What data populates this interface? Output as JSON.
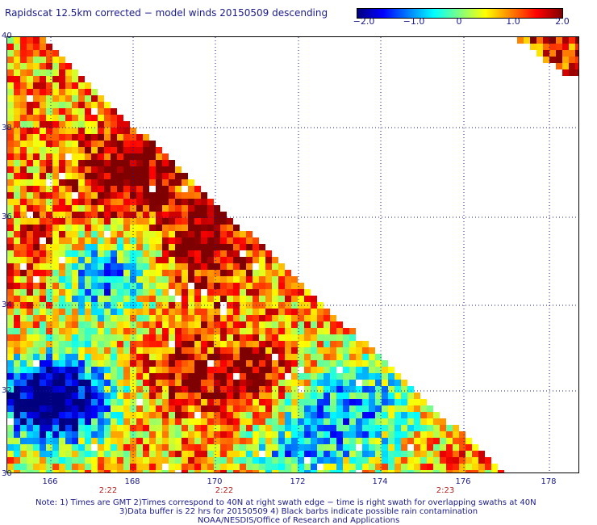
{
  "title": "Rapidscat 12.5km corrected − model winds 20150509 descending",
  "colorbar": {
    "ticks": [
      "−2.0",
      "−1.0",
      "0",
      "1.0",
      "2.0"
    ],
    "tick_values": [
      -2.0,
      -1.0,
      0.0,
      1.0,
      2.0
    ],
    "colors": [
      "#00007f",
      "#0000ff",
      "#0080ff",
      "#00ffff",
      "#80ff80",
      "#ffff00",
      "#ff8000",
      "#ff0000",
      "#7f0000"
    ]
  },
  "y_axis": {
    "labels": [
      "40",
      "38",
      "36",
      "34",
      "32",
      "30"
    ]
  },
  "x_axis": {
    "labels": [
      "166",
      "168",
      "170",
      "172",
      "174",
      "176",
      "178"
    ]
  },
  "time_labels": [
    "2:22",
    "2:22",
    "2:23"
  ],
  "notes": {
    "line1": "Note: 1) Times are GMT 2)Times correspond to 40N at right swath edge − time is right swath for overlapping swaths at 40N",
    "line2": "3)Data buffer is 22 hrs for 20150509 4) Black barbs indicate possible rain contamination",
    "line3": "NOAA/NESDIS/Office of Research and Applications"
  }
}
